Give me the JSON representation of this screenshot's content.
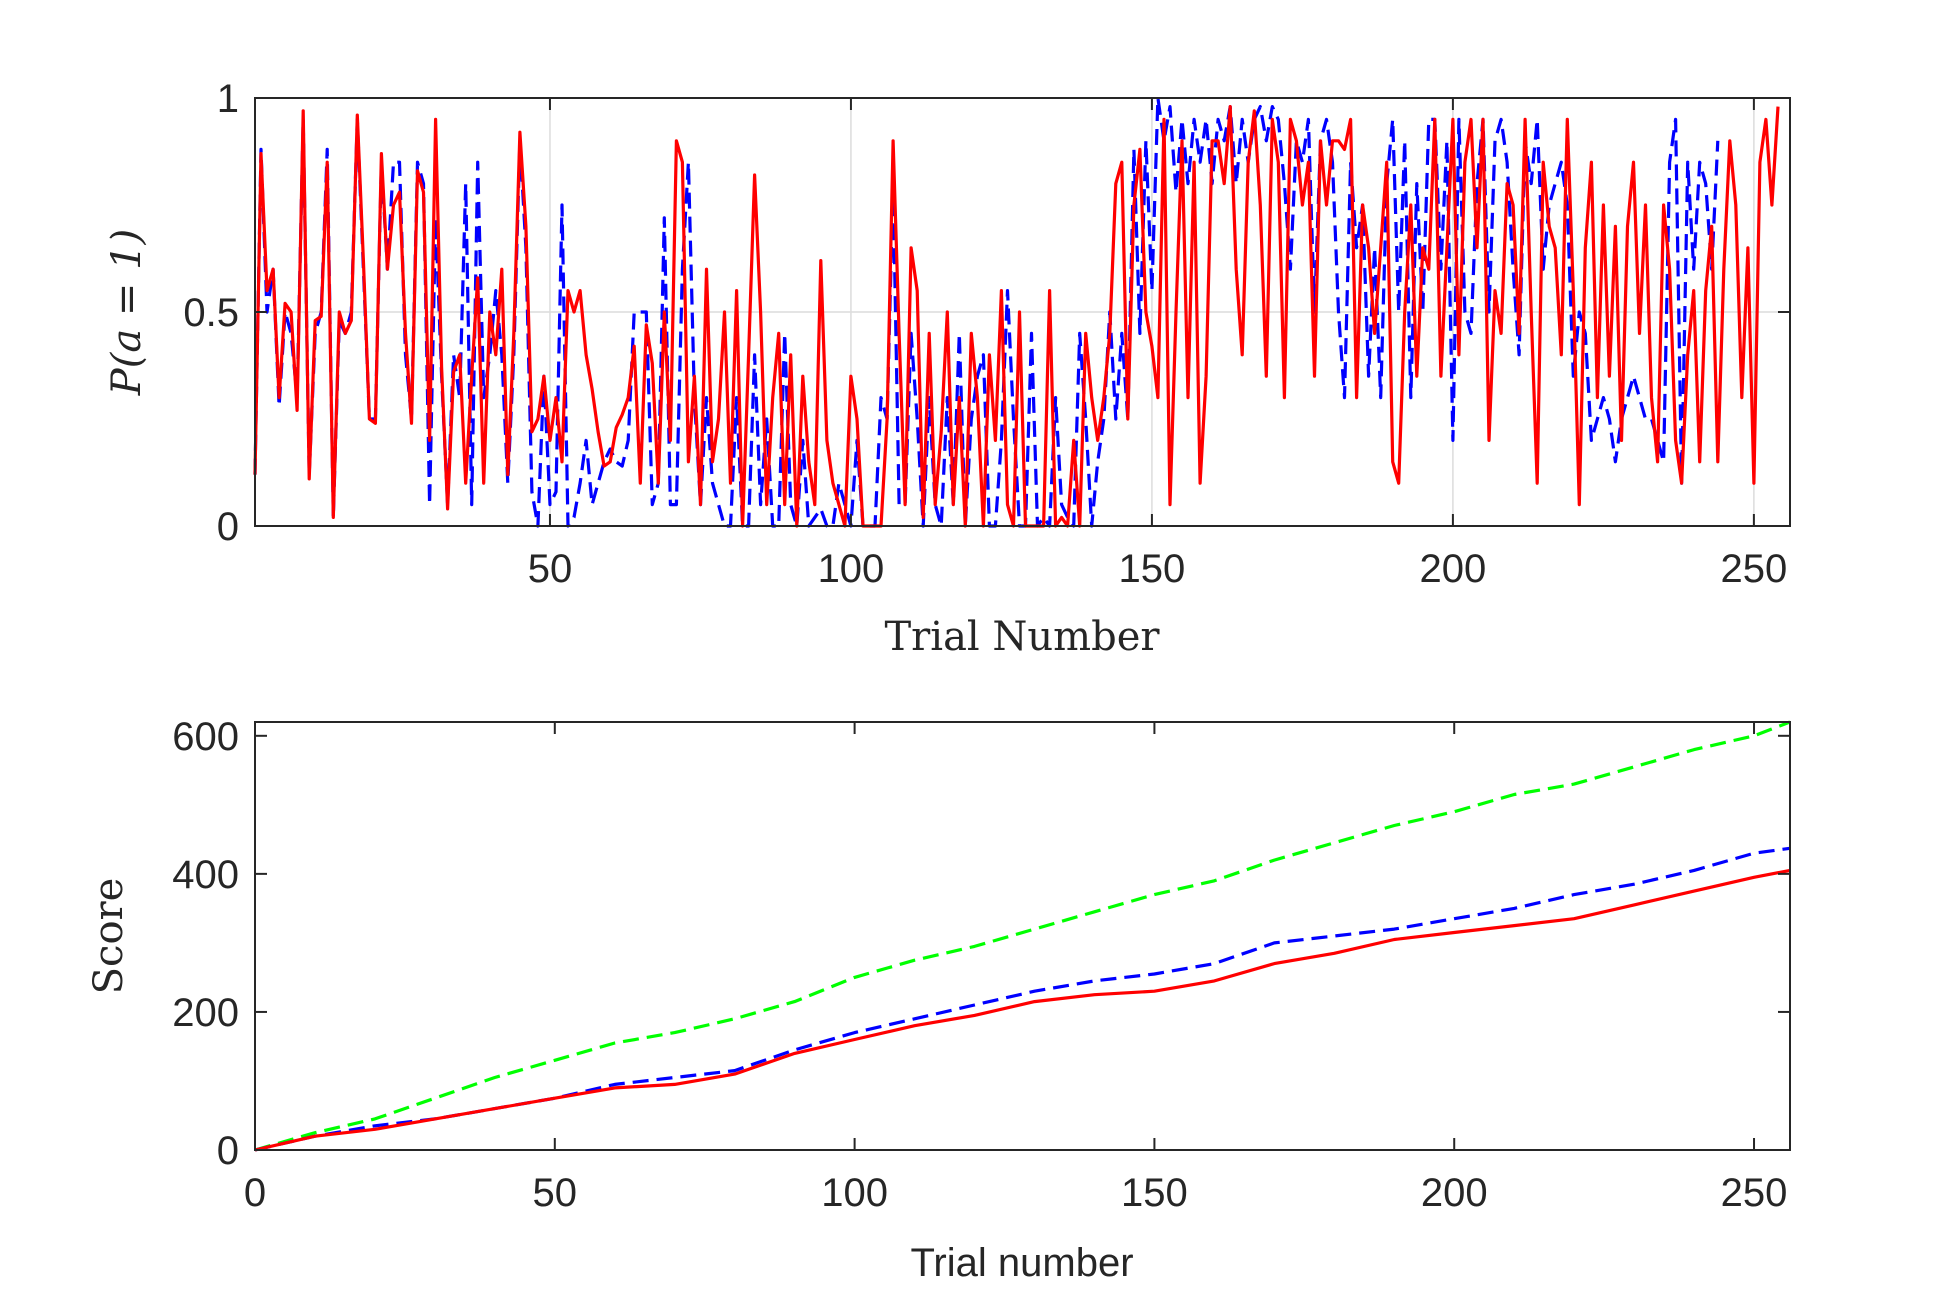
{
  "chart_data": [
    {
      "type": "line",
      "xlabel": "Trial Number",
      "ylabel": "P(a = 1)",
      "xlim": [
        1,
        256
      ],
      "ylim": [
        0,
        1
      ],
      "xticks": [
        50,
        100,
        150,
        200,
        250
      ],
      "yticks": [
        0,
        0.5,
        1
      ],
      "grid": true,
      "series": [
        {
          "style": "dashed",
          "color": "#0000ff",
          "y": [
            0.12,
            0.88,
            0.5,
            0.6,
            0.28,
            0.5,
            0.45,
            0.3,
            0.95,
            0.12,
            0.45,
            0.5,
            0.88,
            0.02,
            0.48,
            0.45,
            0.5,
            0.95,
            0.6,
            0.25,
            0.25,
            0.85,
            0.6,
            0.85,
            0.85,
            0.4,
            0.25,
            0.85,
            0.8,
            0.05,
            0.72,
            0.35,
            0.05,
            0.4,
            0.3,
            0.8,
            0.05,
            0.85,
            0.3,
            0.4,
            0.55,
            0.4,
            0.1,
            0.4,
            0.9,
            0.65,
            0.08,
            0.0,
            0.35,
            0.05,
            0.08,
            0.75,
            0.0,
            0.02,
            0.1,
            0.2,
            0.05,
            0.1,
            0.15,
            0.18,
            0.15,
            0.14,
            0.2,
            0.5,
            0.5,
            0.5,
            0.05,
            0.1,
            0.72,
            0.05,
            0.05,
            0.6,
            0.85,
            0.3,
            0.05,
            0.3,
            0.1,
            0.05,
            0.0,
            0.0,
            0.3,
            0.0,
            0.0,
            0.4,
            0.05,
            0.25,
            0.0,
            0.0,
            0.45,
            0.05,
            0.0,
            0.2,
            0.0,
            0.02,
            0.04,
            0.0,
            0.0,
            0.1,
            0.05,
            0.0,
            0.2,
            0.0,
            0.0,
            0.0,
            0.3,
            0.25,
            0.8,
            0.05,
            0.05,
            0.45,
            0.25,
            0.0,
            0.3,
            0.05,
            0.0,
            0.3,
            0.05,
            0.45,
            0.0,
            0.25,
            0.35,
            0.4,
            0.0,
            0.0,
            0.2,
            0.55,
            0.25,
            0.0,
            0.0,
            0.45,
            0.0,
            0.02,
            0.0,
            0.3,
            0.05,
            0.02,
            0.0,
            0.45,
            0.25,
            0.0,
            0.15,
            0.25,
            0.5,
            0.25,
            0.45,
            0.25,
            0.88,
            0.45,
            0.9,
            0.55,
            1.0,
            0.9,
            0.98,
            0.78,
            0.95,
            0.8,
            0.95,
            0.85,
            0.95,
            0.8,
            0.95,
            0.9,
            0.98,
            0.8,
            0.95,
            0.85,
            0.95,
            0.98,
            0.9,
            0.98,
            0.95,
            0.8,
            0.6,
            0.9,
            0.85,
            0.95,
            0.5,
            0.9,
            0.95,
            0.85,
            0.5,
            0.3,
            0.85,
            0.65,
            0.75,
            0.35,
            0.65,
            0.3,
            0.8,
            0.95,
            0.5,
            0.9,
            0.3,
            0.8,
            0.5,
            0.95,
            0.95,
            0.6,
            0.9,
            0.2,
            0.95,
            0.5,
            0.45,
            0.8,
            0.95,
            0.5,
            0.9,
            0.95,
            0.85,
            0.6,
            0.4,
            0.9,
            0.8,
            0.95,
            0.6,
            0.75,
            0.8,
            0.85,
            0.75,
            0.35,
            0.5,
            0.45,
            0.2,
            0.25,
            0.3,
            0.25,
            0.15,
            0.25,
            0.3,
            0.35,
            0.3,
            0.25,
            0.25,
            0.2,
            0.15,
            0.85,
            0.95,
            0.1,
            0.85,
            0.6,
            0.85,
            0.8,
            0.6,
            0.9
          ]
        },
        {
          "style": "solid",
          "color": "#ff0000",
          "y": [
            0.12,
            0.87,
            0.55,
            0.6,
            0.3,
            0.52,
            0.5,
            0.27,
            0.97,
            0.11,
            0.48,
            0.49,
            0.85,
            0.02,
            0.5,
            0.45,
            0.48,
            0.96,
            0.62,
            0.25,
            0.24,
            0.87,
            0.6,
            0.75,
            0.78,
            0.45,
            0.24,
            0.83,
            0.78,
            0.2,
            0.95,
            0.37,
            0.04,
            0.36,
            0.4,
            0.1,
            0.35,
            0.58,
            0.1,
            0.5,
            0.4,
            0.6,
            0.12,
            0.45,
            0.92,
            0.7,
            0.22,
            0.25,
            0.35,
            0.2,
            0.3,
            0.15,
            0.55,
            0.5,
            0.55,
            0.4,
            0.32,
            0.22,
            0.14,
            0.15,
            0.23,
            0.26,
            0.3,
            0.42,
            0.1,
            0.47,
            0.38,
            0.1,
            0.5,
            0.2,
            0.9,
            0.85,
            0.15,
            0.35,
            0.05,
            0.6,
            0.15,
            0.25,
            0.5,
            0.1,
            0.55,
            0.0,
            0.4,
            0.82,
            0.5,
            0.05,
            0.3,
            0.45,
            0.05,
            0.4,
            0.0,
            0.35,
            0.15,
            0.05,
            0.62,
            0.2,
            0.1,
            0.05,
            0.0,
            0.35,
            0.25,
            0.0,
            0.0,
            0.0,
            0.0,
            0.25,
            0.9,
            0.45,
            0.05,
            0.65,
            0.55,
            0.02,
            0.45,
            0.05,
            0.22,
            0.5,
            0.05,
            0.3,
            0.0,
            0.45,
            0.3,
            0.0,
            0.4,
            0.2,
            0.55,
            0.05,
            0.0,
            0.5,
            0.0,
            0.0,
            0.0,
            0.0,
            0.55,
            0.0,
            0.02,
            0.0,
            0.2,
            0.0,
            0.45,
            0.3,
            0.2,
            0.3,
            0.45,
            0.8,
            0.85,
            0.25,
            0.75,
            0.88,
            0.5,
            0.42,
            0.3,
            0.95,
            0.05,
            0.5,
            0.9,
            0.3,
            0.85,
            0.1,
            0.35,
            0.9,
            0.9,
            0.8,
            0.98,
            0.6,
            0.4,
            0.85,
            0.97,
            0.75,
            0.35,
            0.95,
            0.85,
            0.3,
            0.95,
            0.9,
            0.75,
            0.85,
            0.35,
            0.9,
            0.75,
            0.9,
            0.9,
            0.88,
            0.95,
            0.3,
            0.75,
            0.65,
            0.45,
            0.65,
            0.85,
            0.15,
            0.1,
            0.5,
            0.75,
            0.35,
            0.65,
            0.6,
            0.95,
            0.35,
            0.65,
            0.95,
            0.4,
            0.85,
            0.95,
            0.65,
            0.95,
            0.2,
            0.55,
            0.45,
            0.8,
            0.75,
            0.45,
            0.95,
            0.5,
            0.1,
            0.85,
            0.7,
            0.65,
            0.4,
            0.95,
            0.55,
            0.05,
            0.65,
            0.85,
            0.3,
            0.75,
            0.35,
            0.7,
            0.2,
            0.7,
            0.85,
            0.45,
            0.75,
            0.3,
            0.15,
            0.75,
            0.6,
            0.2,
            0.1,
            0.4,
            0.55,
            0.15,
            0.55,
            0.7,
            0.15,
            0.6,
            0.9,
            0.75,
            0.3,
            0.65,
            0.1,
            0.85,
            0.95,
            0.75,
            0.98
          ]
        }
      ]
    },
    {
      "type": "line",
      "xlabel": "Trial number",
      "ylabel": "Score",
      "xlim": [
        0,
        256
      ],
      "ylim": [
        0,
        620
      ],
      "xticks": [
        0,
        50,
        100,
        150,
        200,
        250
      ],
      "yticks": [
        0,
        200,
        400,
        600
      ],
      "grid": false,
      "series": [
        {
          "style": "dashed",
          "color": "#00ff00",
          "x": [
            0,
            10,
            20,
            30,
            40,
            50,
            60,
            70,
            80,
            90,
            100,
            110,
            120,
            130,
            140,
            150,
            160,
            170,
            180,
            190,
            200,
            210,
            220,
            230,
            240,
            250,
            256
          ],
          "y": [
            0,
            25,
            45,
            75,
            105,
            130,
            155,
            170,
            190,
            215,
            250,
            275,
            295,
            320,
            345,
            370,
            390,
            420,
            445,
            470,
            490,
            515,
            530,
            555,
            580,
            600,
            620
          ]
        },
        {
          "style": "dashed",
          "color": "#0000ff",
          "x": [
            0,
            10,
            20,
            30,
            40,
            50,
            60,
            70,
            80,
            90,
            100,
            110,
            120,
            130,
            140,
            150,
            160,
            170,
            180,
            190,
            200,
            210,
            220,
            230,
            240,
            250,
            256
          ],
          "y": [
            0,
            20,
            35,
            45,
            60,
            75,
            95,
            105,
            115,
            145,
            170,
            190,
            210,
            230,
            245,
            255,
            270,
            300,
            310,
            320,
            335,
            350,
            370,
            385,
            405,
            430,
            437
          ]
        },
        {
          "style": "solid",
          "color": "#ff0000",
          "x": [
            0,
            10,
            20,
            30,
            40,
            50,
            60,
            70,
            80,
            90,
            100,
            110,
            120,
            130,
            140,
            150,
            160,
            170,
            180,
            190,
            200,
            210,
            220,
            230,
            240,
            250,
            256
          ],
          "y": [
            0,
            20,
            30,
            45,
            60,
            75,
            90,
            95,
            110,
            140,
            160,
            180,
            195,
            215,
            225,
            230,
            245,
            270,
            285,
            305,
            315,
            325,
            335,
            355,
            375,
            395,
            405
          ]
        }
      ]
    }
  ]
}
